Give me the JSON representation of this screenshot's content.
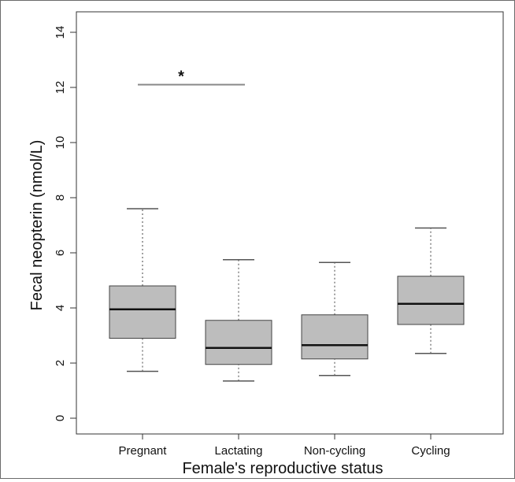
{
  "chart_data": {
    "type": "box",
    "xlabel": "Female's reproductive status",
    "ylabel": "Fecal neopterin (nmol/L)",
    "ylim": [
      0,
      14
    ],
    "yticks": [
      "0",
      "2",
      "4",
      "6",
      "8",
      "10",
      "12",
      "14"
    ],
    "categories": [
      "Pregnant",
      "Lactating",
      "Non-cycling",
      "Cycling"
    ],
    "boxes": [
      {
        "category": "Pregnant",
        "whisker_low": 1.7,
        "q1": 2.9,
        "median": 3.95,
        "q3": 4.8,
        "whisker_high": 7.6
      },
      {
        "category": "Lactating",
        "whisker_low": 1.35,
        "q1": 1.95,
        "median": 2.55,
        "q3": 3.55,
        "whisker_high": 5.75
      },
      {
        "category": "Non-cycling",
        "whisker_low": 1.55,
        "q1": 2.15,
        "median": 2.65,
        "q3": 3.75,
        "whisker_high": 5.65
      },
      {
        "category": "Cycling",
        "whisker_low": 2.35,
        "q1": 3.4,
        "median": 4.15,
        "q3": 5.15,
        "whisker_high": 6.9
      }
    ],
    "significance": {
      "from": "Pregnant",
      "to": "Lactating",
      "y": 12.1,
      "label": "*"
    },
    "box_color": "#bdbdbd",
    "grid": false
  }
}
